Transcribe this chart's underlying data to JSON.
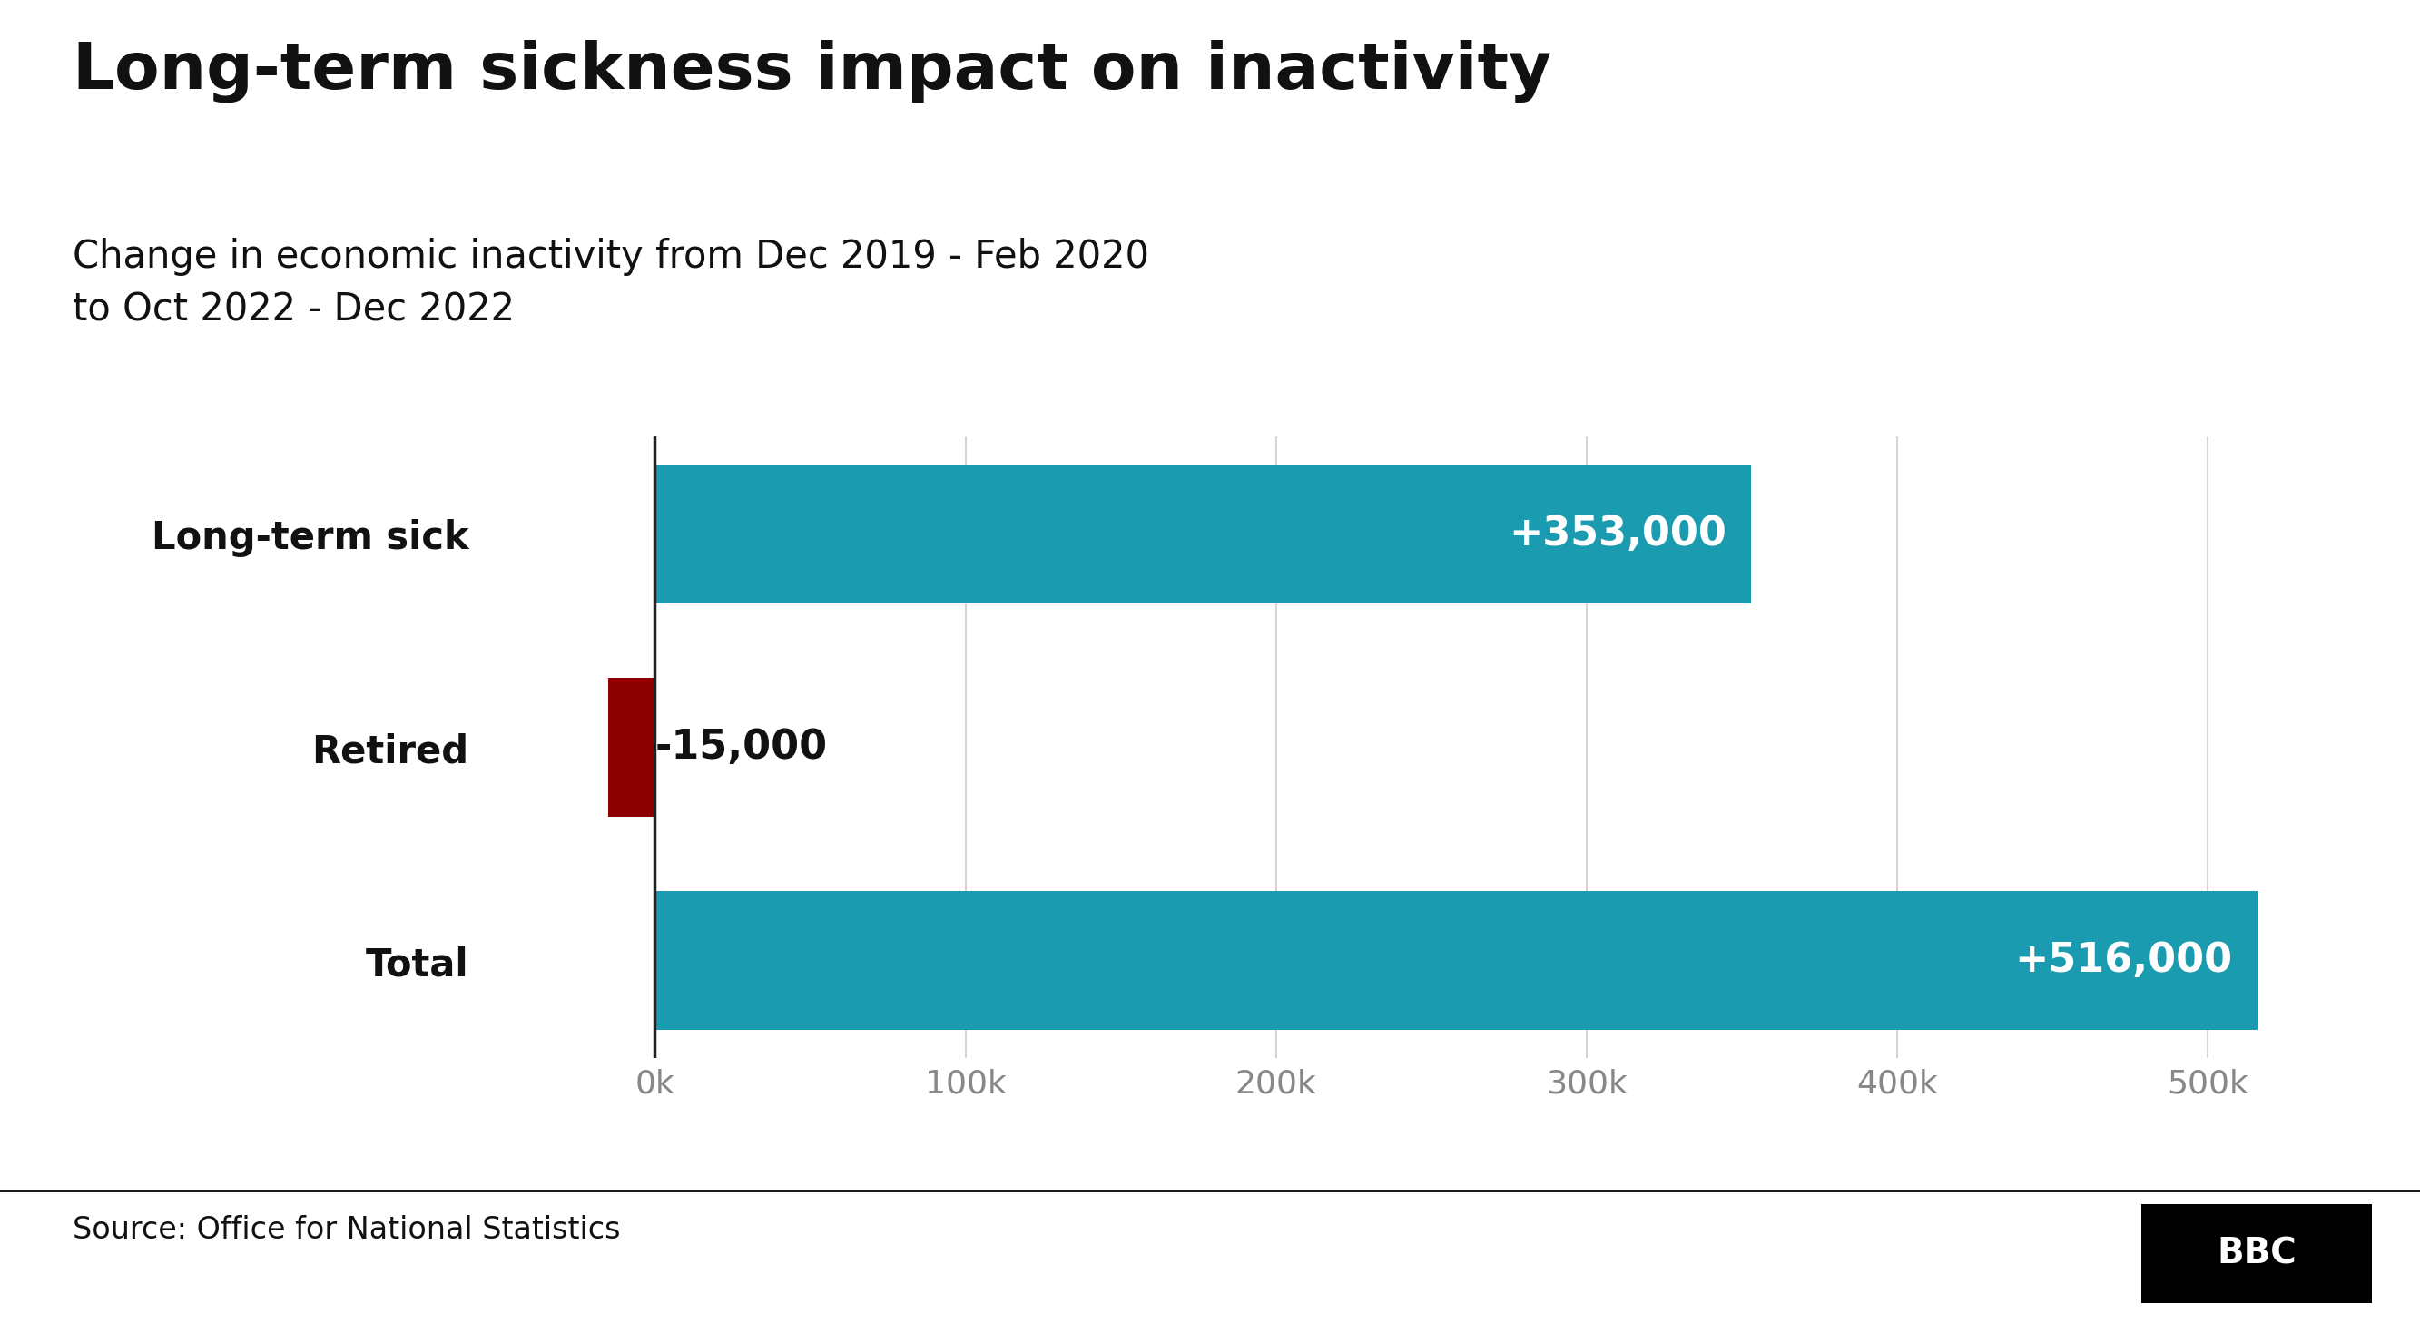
{
  "title": "Long-term sickness impact on inactivity",
  "subtitle": "Change in economic inactivity from Dec 2019 - Feb 2020\nto Oct 2022 - Dec 2022",
  "categories": [
    "Total",
    "Retired",
    "Long-term sick"
  ],
  "values": [
    516000,
    -15000,
    353000
  ],
  "bar_colors": [
    "#1a9bb0",
    "#8b0000",
    "#1a9bb0"
  ],
  "labels": [
    "+516,000",
    "-15,000",
    "+353,000"
  ],
  "xlim": [
    -55000,
    545000
  ],
  "xticks": [
    0,
    100000,
    200000,
    300000,
    400000,
    500000
  ],
  "xticklabels": [
    "0k",
    "100k",
    "200k",
    "300k",
    "400k",
    "500k"
  ],
  "source": "Source: Office for National Statistics",
  "background_color": "#ffffff",
  "bar_height": 0.65,
  "title_fontsize": 52,
  "subtitle_fontsize": 30,
  "label_fontsize": 32,
  "ytick_fontsize": 30,
  "xtick_fontsize": 26,
  "source_fontsize": 24,
  "axis_line_color": "#222222",
  "grid_color": "#cccccc",
  "bbc_box_color": "#000000",
  "bbc_text_color": "#ffffff",
  "footer_line_color": "#000000"
}
